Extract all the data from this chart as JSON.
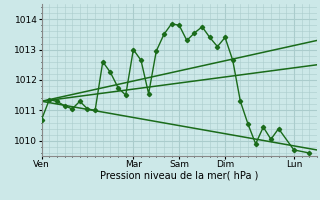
{
  "background_color": "#cce8e8",
  "grid_color": "#aacccc",
  "line_color": "#1a6b1a",
  "ylim": [
    1009.5,
    1014.5
  ],
  "ylabel_ticks": [
    1010,
    1011,
    1012,
    1013,
    1014
  ],
  "xlabel": "Pression niveau de la mer( hPa )",
  "day_labels": [
    "Ven",
    "Mar",
    "Sam",
    "Dim",
    "Lun"
  ],
  "day_positions": [
    0,
    12,
    18,
    24,
    33
  ],
  "xlim": [
    0,
    36
  ],
  "series1_x": [
    0,
    1,
    2,
    3,
    4,
    5,
    6,
    7,
    8,
    9,
    10,
    11,
    12,
    13,
    14,
    15,
    16,
    17,
    18,
    19,
    20,
    21,
    22,
    23,
    24,
    25,
    26,
    27,
    28,
    29,
    30,
    31,
    33,
    35
  ],
  "series1_y": [
    1010.7,
    1011.35,
    1011.3,
    1011.15,
    1011.05,
    1011.3,
    1011.05,
    1011.0,
    1012.6,
    1012.25,
    1011.75,
    1011.5,
    1013.0,
    1012.65,
    1011.55,
    1012.95,
    1013.5,
    1013.85,
    1013.8,
    1013.3,
    1013.55,
    1013.75,
    1013.4,
    1013.1,
    1013.4,
    1012.65,
    1011.3,
    1010.55,
    1009.9,
    1010.45,
    1010.05,
    1010.4,
    1009.7,
    1009.6
  ],
  "series2_x": [
    0,
    36
  ],
  "series2_y": [
    1011.3,
    1013.3
  ],
  "series3_x": [
    0,
    36
  ],
  "series3_y": [
    1011.3,
    1009.7
  ],
  "series4_x": [
    0,
    36
  ],
  "series4_y": [
    1011.3,
    1012.5
  ]
}
